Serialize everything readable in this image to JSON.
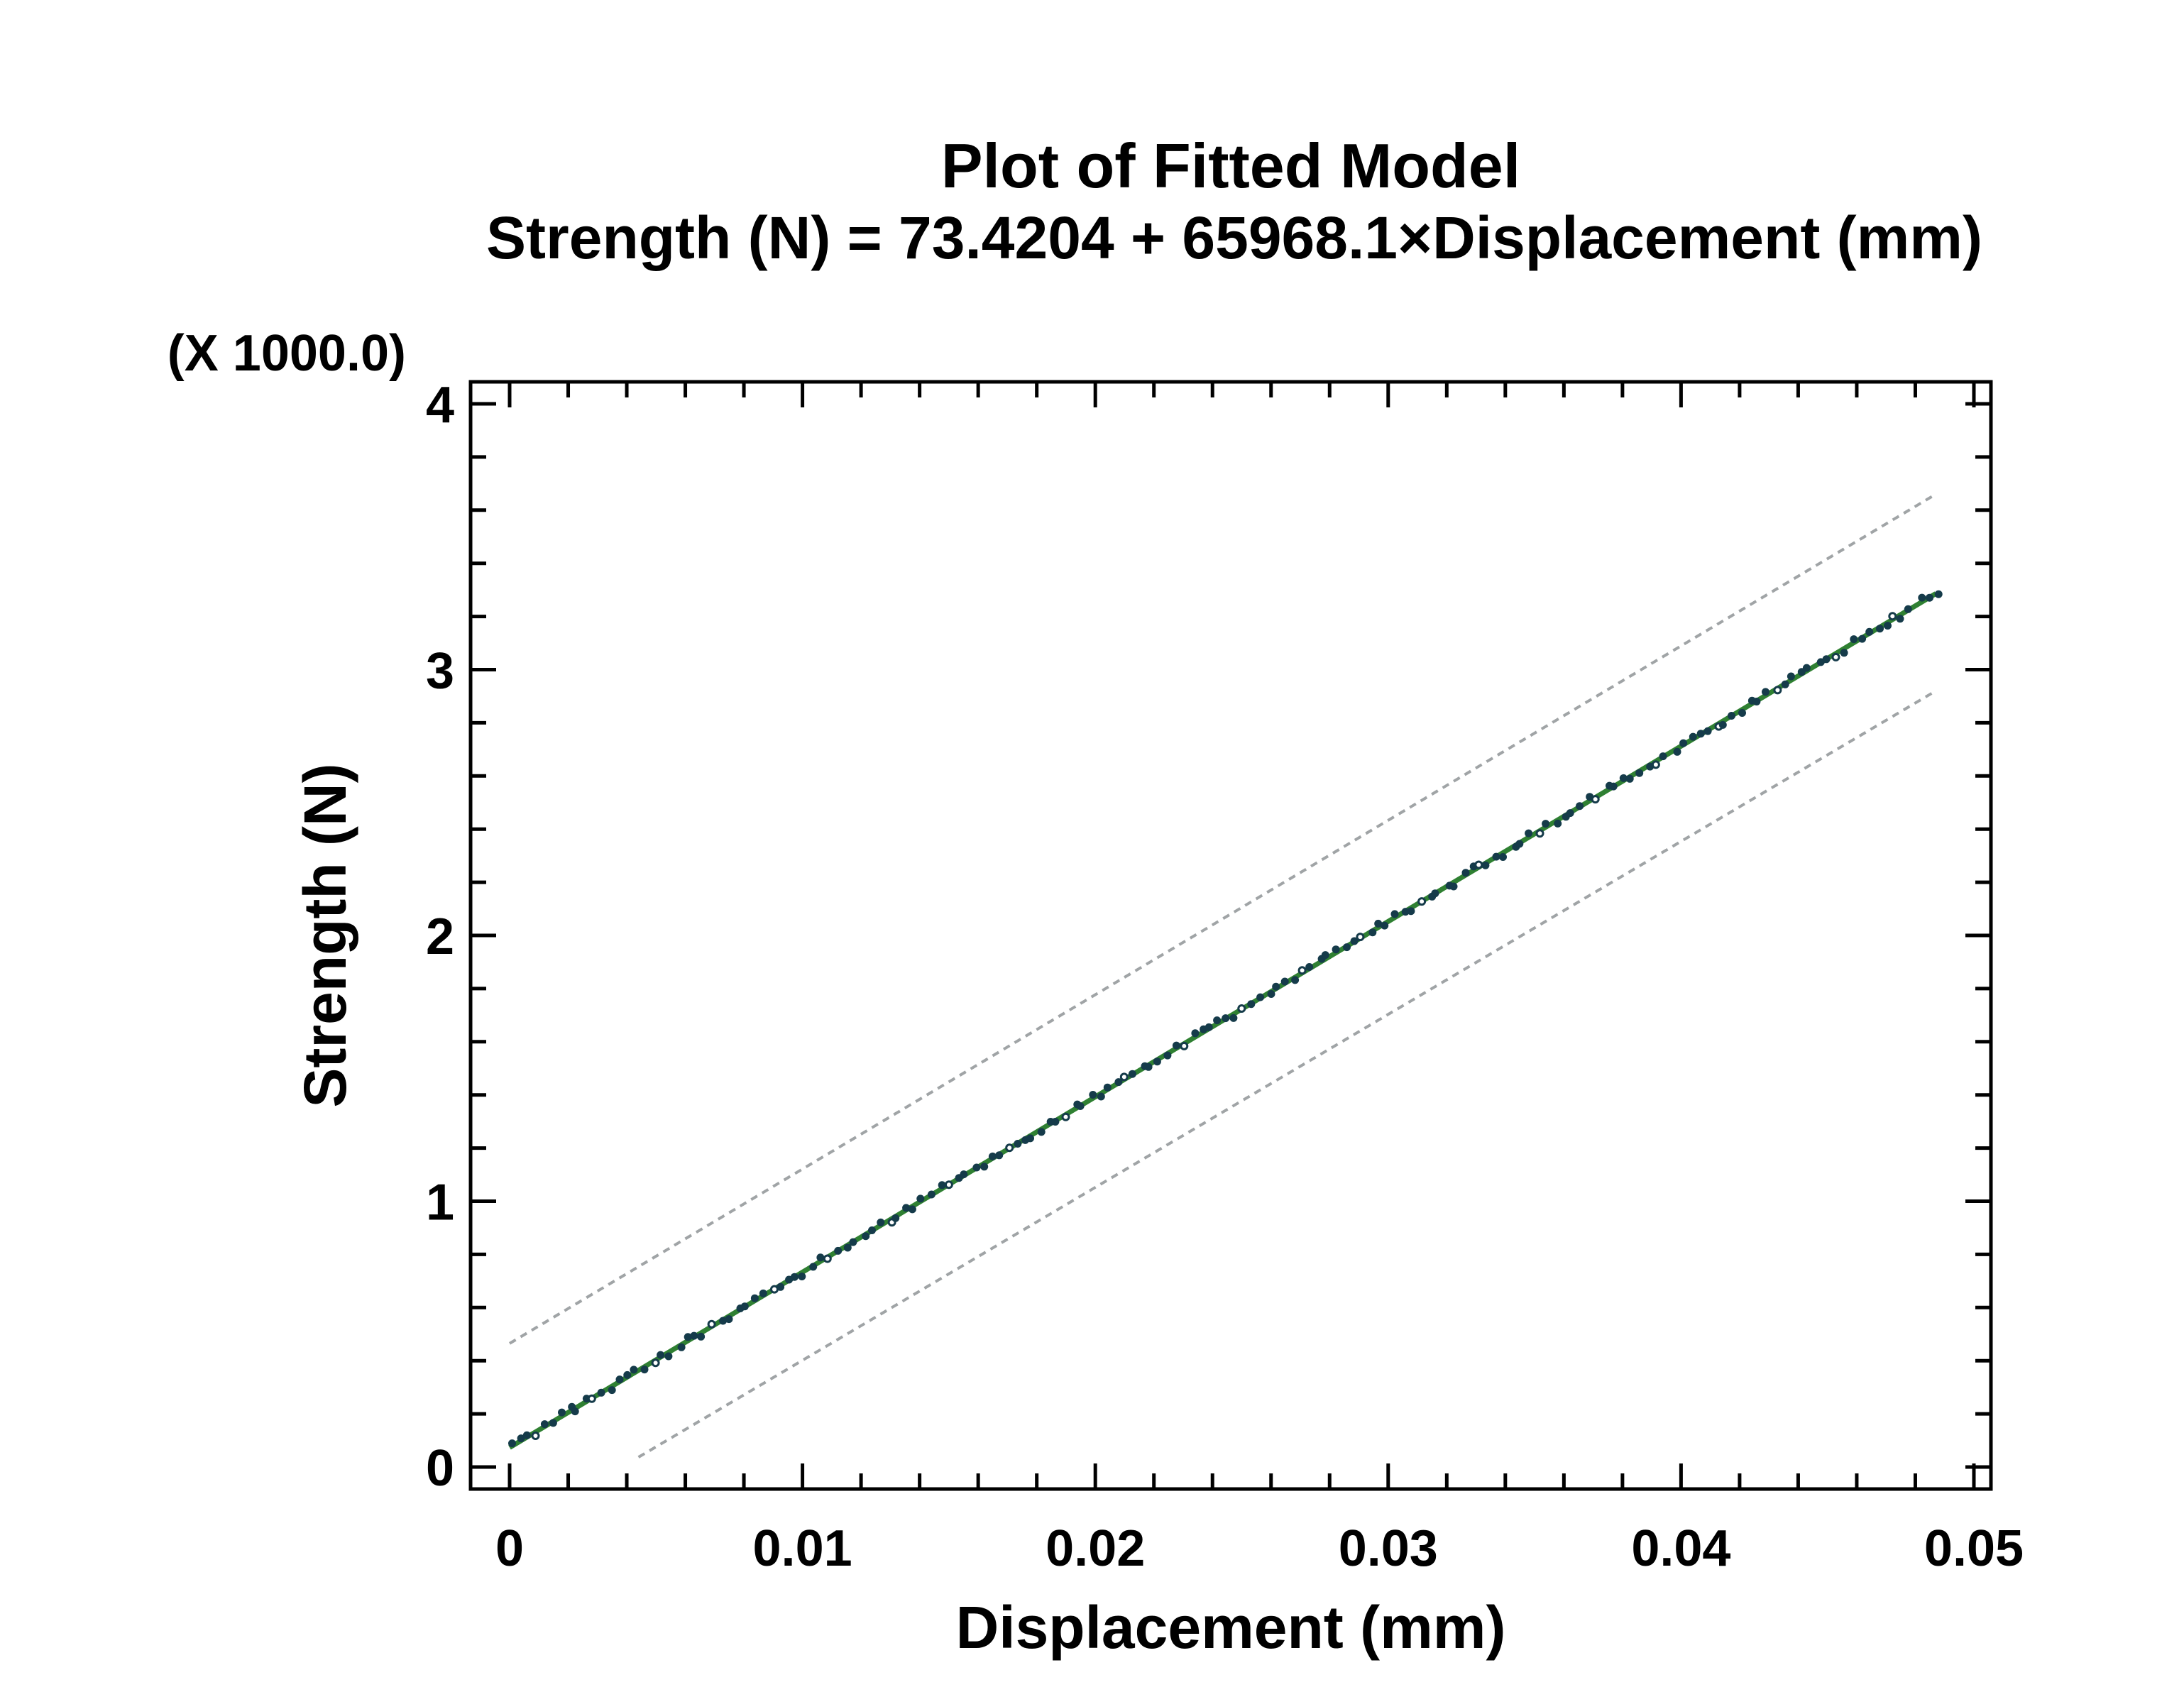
{
  "chart_data": {
    "type": "scatter",
    "title": "Plot of Fitted Model",
    "equation": "Strength (N) = 73.4204 + 65968.1×Displacement (mm)",
    "xlabel": "Displacement (mm)",
    "ylabel": "Strength (N)",
    "y_unit_multiplier": "(X 1000.0)",
    "xlim": [
      -0.001333,
      0.050582
    ],
    "ylim": [
      -0.0828,
      4.0828
    ],
    "x_major_ticks": [
      0,
      0.01,
      0.02,
      0.03,
      0.04,
      0.05
    ],
    "x_tick_labels": [
      "0",
      "0.01",
      "0.02",
      "0.03",
      "0.04",
      "0.05"
    ],
    "x_minor_step": 0.002,
    "y_major_ticks": [
      0,
      1,
      2,
      3,
      4
    ],
    "y_tick_labels": [
      "0",
      "1",
      "2",
      "3",
      "4"
    ],
    "y_minor_step": 0.2,
    "grid": false,
    "legend": "none",
    "background_color": "#ffffff",
    "axis_color": "#000000",
    "fitted_model": {
      "intercept_N": 73.4204,
      "slope_N_per_mm": 65968.1,
      "y_scale_divisor": 1000,
      "x_start": 0,
      "x_end": 0.0487,
      "line_color": "#2f8032"
    },
    "observations": {
      "count": 170,
      "marker": "circle",
      "color": "#153b4a",
      "x_start": 0,
      "x_end": 0.0487,
      "y_jitter": 0.016
    },
    "prediction_bands": [
      {
        "name": "upper-prediction-limit",
        "x1": 0.0,
        "y1": 0.465,
        "x2": 0.0487,
        "y2": 3.66,
        "color": "#a0a4a6",
        "dashed": true
      },
      {
        "name": "lower-prediction-limit",
        "x1": 0.0044,
        "y1": 0.037,
        "x2": 0.0487,
        "y2": 2.92,
        "color": "#a0a4a6",
        "dashed": true
      }
    ]
  }
}
